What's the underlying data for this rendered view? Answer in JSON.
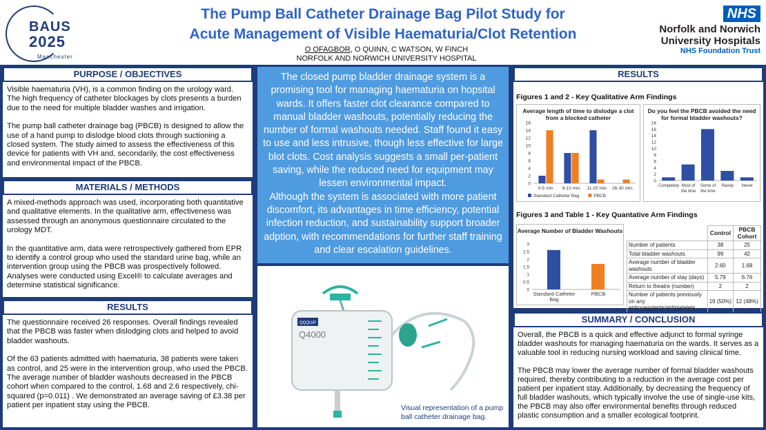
{
  "header": {
    "baus_logo": {
      "line1": "BAUS",
      "line2": "2025",
      "line3": "Manchester"
    },
    "title_line1": "The Pump Ball Catheter Drainage Bag Pilot Study for",
    "title_line2": "Acute Management of Visible Haematuria/Clot Retention",
    "author_1": "O OFAGBOR",
    "authors_rest": ",  O  QUINN, C  WATSON,  W  FINCH",
    "affiliation": "NORFOLK AND NORWICH  UNIVERSITY HOSPITAL",
    "nhs_badge": "NHS",
    "nhs_line1": "Norfolk and Norwich",
    "nhs_line2": "University Hospitals",
    "nhs_line3": "NHS Foundation Trust"
  },
  "purpose": {
    "heading": "PURPOSE / OBJECTIVES",
    "p1": "Visible haematuria (VH), is a common finding on the urology ward. The high frequency of catheter blockages by clots presents a burden due to the need for multiple bladder washes and irrigation.",
    "p2": "The pump ball catheter drainage bag (PBCB) is designed to allow the use of a hand pump to dislodge blood clots through suctioning a closed system. The study aimed to assess the effectiveness of this device for patients with VH and, secondarily, the cost effectiveness and environmental impact of the PBCB."
  },
  "methods": {
    "heading": "MATERIALS / METHODS",
    "p1": "A mixed-methods approach was used, incorporating both quantitative and qualitative elements. In the qualitative arm, effectiveness was assessed through an anonymous questionnaire circulated to the urology MDT.",
    "p2": "In the quantitative arm, data were retrospectively gathered from EPR to identify a control group who used the standard urine bag, while an intervention group using the PBCB was prospectively followed. Analyses were conducted using Excel® to calculate averages and determine statistical significance."
  },
  "results_left": {
    "heading": "RESULTS",
    "p1": "The questionnaire received 26 responses. Overall findings revealed that the PBCB was faster when dislodging clots and helped to avoid bladder washouts.",
    "p2": "Of the 63 patients admitted with haematuria, 38 patients were taken as control, and 25 were in the intervention group, who used the PBCB.",
    "p3": "The average number of bladder washouts decreased in the PBCB cohort when compared to the control, 1.68 and 2.6 respectively, chi-squared (p=0.011) . We demonstrated an average saving of £3.38 per patient per inpatient stay using the PBCB."
  },
  "centre": {
    "text1": "The closed pump bladder drainage system is a promising tool for managing haematuria on hopsital wards. It offers faster clot clearance compared to manual bladder washouts, potentially reducing the number of formal washouts needed. Staff found it easy to use and less intrusive, though less effective for large blot clots. Cost analysis suggests a small per-patient saving, while the reduced need for equipment may lessen environmental impact.",
    "text2": "Although the system is associated with more patient discomfort, its advantages in time efficiency, potential infection reduction, and sustainability support broader adption, with recommendations for further staff training and clear escalation guidelines.",
    "bag_brand": "QQQUIP",
    "bag_model": "Q4000",
    "image_caption": "Visual representation of a pump ball catheter drainage bag."
  },
  "results_right": {
    "heading": "RESULTS",
    "fig12_title": "Figures 1 and 2 - Key Qualitative Arm Findings",
    "fig3_title": "Figures 3 and Table 1 - Key Quantative Arm Findings"
  },
  "chart_data": [
    {
      "type": "bar",
      "title": "Average length of time to dislodge a clot from a blocked catheter",
      "categories": [
        "0-5 min.",
        "6-10 min.",
        "11-25 min.",
        "26-30 min."
      ],
      "series": [
        {
          "name": "Standard Catheter Bag",
          "values": [
            2,
            8,
            14,
            0
          ],
          "color": "#2e4fa3"
        },
        {
          "name": "PBCB",
          "values": [
            14,
            8,
            1,
            1
          ],
          "color": "#f07f22"
        }
      ],
      "ylim": [
        0,
        16
      ],
      "yticks": [
        "0",
        "2",
        "4",
        "6",
        "8",
        "10",
        "12",
        "14",
        "16"
      ],
      "legend": "bottom"
    },
    {
      "type": "bar",
      "title": "Do you feel the PBCB avoided the need for formal bladder washouts?",
      "categories": [
        "Completely",
        "Most of the time",
        "Some of the time",
        "Rarely",
        "Never"
      ],
      "series": [
        {
          "values": [
            1,
            5,
            16,
            3,
            1
          ],
          "color": "#2e4fa3"
        }
      ],
      "ylim": [
        0,
        18
      ],
      "yticks": [
        "0",
        "2",
        "4",
        "6",
        "8",
        "10",
        "12",
        "14",
        "16",
        "18"
      ]
    },
    {
      "type": "bar",
      "title": "Average Number of Bladder Washouts",
      "categories": [
        "Standard Catheter Bag",
        "PBCB"
      ],
      "series": [
        {
          "values": [
            2.6,
            1.68
          ],
          "colors": [
            "#2e4fa3",
            "#f07f22"
          ]
        }
      ],
      "ylim": [
        0,
        3
      ],
      "yticks": [
        "0",
        "0.5",
        "1",
        "1.5",
        "2",
        "2.5",
        "3"
      ]
    },
    {
      "type": "table",
      "headers": [
        "",
        "Control",
        "PBCB Cohort"
      ],
      "rows": [
        [
          "Number of patients",
          "38",
          "25"
        ],
        [
          "Total bladder washouts",
          "99",
          "42"
        ],
        [
          "Average number of bladder washouts",
          "2.60",
          "1.68"
        ],
        [
          "Average number of stay (days)",
          "5.79",
          "6.76"
        ],
        [
          "Return to theatre (number)",
          "2",
          "2"
        ],
        [
          "Number of patients previously on any anticoagulants/antiplatelets",
          "19 (50%)",
          "12 (48%)"
        ]
      ]
    }
  ],
  "summary": {
    "heading": "SUMMARY / CONCLUSION",
    "p1": "Overall, the PBCB is a quick and effective adjunct to formal syringe bladder washouts for managing haematuria on the wards. It serves as a valuable tool in reducing nursing workload and saving clinical time.",
    "p2": "The PBCB may lower the average number of formal bladder washouts required, thereby contributing to a reduction in the average cost per patient per inpatient stay. Additionally, by decreasing the frequency of full bladder washouts, which typically involve the use of single-use kits, the PBCB may also offer environmental benefits through reduced plastic consumption and a smaller ecological footprint."
  }
}
